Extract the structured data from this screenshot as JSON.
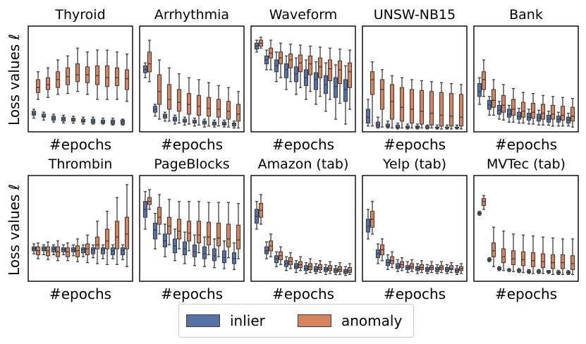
{
  "colors": {
    "inlier": "#5471A8",
    "anomaly": "#D5845E",
    "edge": "#3d3d3d"
  },
  "ylabel": "Loss values ℓ",
  "xlabel": "#epochs",
  "legend": {
    "inlier": "inlier",
    "anomaly": "anomaly"
  },
  "chart_data": [
    {
      "type": "box",
      "title": "Thyroid",
      "ylim": [
        0,
        100
      ],
      "epochs": 10,
      "inlier": [
        [
          11,
          14,
          16,
          18,
          20
        ],
        [
          9,
          12,
          13,
          15,
          17
        ],
        [
          7,
          9,
          11,
          13,
          15
        ],
        [
          6,
          8,
          10,
          12,
          14
        ],
        [
          6,
          8,
          9,
          11,
          13
        ],
        [
          5,
          7,
          8,
          10,
          12
        ],
        [
          5,
          6,
          8,
          10,
          12
        ],
        [
          5,
          6,
          7,
          9,
          11
        ],
        [
          4,
          5,
          7,
          9,
          11
        ],
        [
          4,
          5,
          7,
          9,
          10
        ]
      ],
      "anomaly": [
        [
          30,
          37,
          42,
          50,
          58
        ],
        [
          32,
          40,
          45,
          52,
          62
        ],
        [
          35,
          42,
          50,
          58,
          70
        ],
        [
          36,
          45,
          53,
          62,
          74
        ],
        [
          38,
          48,
          55,
          66,
          82
        ],
        [
          35,
          47,
          55,
          63,
          78
        ],
        [
          30,
          45,
          54,
          64,
          80
        ],
        [
          30,
          43,
          52,
          64,
          80
        ],
        [
          30,
          44,
          52,
          62,
          78
        ],
        [
          28,
          40,
          51,
          60,
          76
        ]
      ]
    },
    {
      "type": "box",
      "title": "Arrhythmia",
      "ylim": [
        0,
        100
      ],
      "epochs": 10,
      "inlier": [
        [
          52,
          57,
          60,
          64,
          67
        ],
        [
          13,
          17,
          20,
          23,
          25
        ],
        [
          8,
          11,
          13,
          15,
          17
        ],
        [
          5,
          8,
          10,
          12,
          14
        ],
        [
          4,
          7,
          8,
          10,
          12
        ],
        [
          3,
          6,
          7,
          9,
          11
        ],
        [
          2,
          5,
          7,
          8,
          10
        ],
        [
          2,
          4,
          6,
          7,
          9
        ],
        [
          2,
          4,
          5,
          7,
          9
        ],
        [
          1,
          3,
          5,
          6,
          8
        ]
      ],
      "anomaly": [
        [
          48,
          58,
          66,
          78,
          90
        ],
        [
          10,
          25,
          38,
          55,
          70
        ],
        [
          8,
          20,
          30,
          45,
          62
        ],
        [
          6,
          18,
          27,
          40,
          56
        ],
        [
          5,
          15,
          25,
          36,
          52
        ],
        [
          4,
          14,
          23,
          34,
          50
        ],
        [
          3,
          13,
          21,
          32,
          47
        ],
        [
          3,
          12,
          20,
          30,
          44
        ],
        [
          2,
          10,
          18,
          28,
          42
        ],
        [
          1,
          8,
          15,
          25,
          38
        ]
      ]
    },
    {
      "type": "box",
      "title": "Waveform",
      "ylim": [
        0,
        100
      ],
      "epochs": 10,
      "inlier": [
        [
          78,
          81,
          84,
          87,
          90
        ],
        [
          60,
          66,
          70,
          74,
          80
        ],
        [
          48,
          58,
          64,
          70,
          78
        ],
        [
          40,
          52,
          60,
          66,
          74
        ],
        [
          35,
          48,
          56,
          63,
          72
        ],
        [
          30,
          44,
          52,
          60,
          70
        ],
        [
          25,
          40,
          50,
          57,
          68
        ],
        [
          18,
          36,
          45,
          54,
          67
        ],
        [
          10,
          32,
          43,
          52,
          65
        ],
        [
          5,
          28,
          40,
          50,
          64
        ]
      ],
      "anomaly": [
        [
          82,
          84,
          87,
          90,
          93
        ],
        [
          60,
          72,
          77,
          82,
          90
        ],
        [
          52,
          66,
          72,
          78,
          87
        ],
        [
          48,
          62,
          70,
          76,
          86
        ],
        [
          42,
          58,
          67,
          75,
          85
        ],
        [
          38,
          55,
          66,
          74,
          84
        ],
        [
          33,
          52,
          63,
          72,
          83
        ],
        [
          30,
          49,
          61,
          70,
          82
        ],
        [
          26,
          46,
          60,
          69,
          81
        ],
        [
          20,
          42,
          58,
          67,
          80
        ]
      ]
    },
    {
      "type": "box",
      "title": "UNSW-NB15",
      "ylim": [
        0,
        100
      ],
      "epochs": 10,
      "inlier": [
        [
          3,
          6,
          12,
          20,
          30
        ],
        [
          1,
          2,
          4,
          7,
          12
        ],
        [
          1,
          2,
          3,
          5,
          8
        ],
        [
          0,
          1,
          2,
          4,
          6
        ],
        [
          0,
          1,
          2,
          3,
          5
        ],
        [
          0,
          1,
          2,
          3,
          5
        ],
        [
          0,
          1,
          1,
          3,
          4
        ],
        [
          0,
          1,
          1,
          2,
          4
        ],
        [
          0,
          1,
          1,
          2,
          4
        ],
        [
          0,
          1,
          1,
          2,
          4
        ]
      ],
      "anomaly": [
        [
          3,
          35,
          50,
          58,
          68
        ],
        [
          2,
          20,
          40,
          50,
          60
        ],
        [
          1,
          10,
          28,
          45,
          54
        ],
        [
          1,
          8,
          22,
          42,
          52
        ],
        [
          1,
          6,
          20,
          40,
          50
        ],
        [
          1,
          5,
          18,
          39,
          49
        ],
        [
          1,
          4,
          16,
          38,
          48
        ],
        [
          0,
          3,
          14,
          37,
          47
        ],
        [
          0,
          3,
          13,
          36,
          46
        ],
        [
          0,
          3,
          12,
          35,
          45
        ]
      ]
    },
    {
      "type": "box",
      "title": "Bank",
      "ylim": [
        0,
        100
      ],
      "epochs": 10,
      "inlier": [
        [
          25,
          33,
          38,
          46,
          52
        ],
        [
          14,
          20,
          24,
          29,
          33
        ],
        [
          10,
          15,
          19,
          24,
          28
        ],
        [
          7,
          12,
          15,
          20,
          24
        ],
        [
          6,
          10,
          13,
          17,
          21
        ],
        [
          5,
          9,
          12,
          16,
          20
        ],
        [
          4,
          8,
          11,
          15,
          19
        ],
        [
          4,
          7,
          10,
          14,
          18
        ],
        [
          3,
          7,
          10,
          13,
          17
        ],
        [
          3,
          6,
          9,
          12,
          16
        ]
      ],
      "anomaly": [
        [
          33,
          40,
          50,
          58,
          70
        ],
        [
          14,
          22,
          29,
          40,
          50
        ],
        [
          9,
          17,
          24,
          34,
          45
        ],
        [
          7,
          14,
          20,
          30,
          41
        ],
        [
          6,
          12,
          18,
          27,
          37
        ],
        [
          5,
          11,
          17,
          26,
          36
        ],
        [
          4,
          10,
          16,
          25,
          34
        ],
        [
          3,
          10,
          15,
          24,
          33
        ],
        [
          3,
          9,
          14,
          23,
          32
        ],
        [
          2,
          8,
          13,
          22,
          31
        ]
      ]
    },
    {
      "type": "box",
      "title": "Thrombin",
      "ylim": [
        0,
        100
      ],
      "epochs": 10,
      "inlier": [
        [
          25,
          28,
          30,
          32,
          35
        ],
        [
          24,
          28,
          30,
          32,
          34
        ],
        [
          24,
          27,
          30,
          32,
          34
        ],
        [
          24,
          27,
          29,
          31,
          34
        ],
        [
          23,
          27,
          29,
          31,
          34
        ],
        [
          22,
          26,
          29,
          31,
          34
        ],
        [
          21,
          25,
          29,
          31,
          34
        ],
        [
          20,
          25,
          29,
          31,
          34
        ],
        [
          20,
          24,
          28,
          31,
          34
        ],
        [
          19,
          24,
          28,
          31,
          34
        ]
      ],
      "anomaly": [
        [
          20,
          24,
          28,
          32,
          36
        ],
        [
          19,
          23,
          28,
          32,
          37
        ],
        [
          18,
          22,
          27,
          32,
          38
        ],
        [
          18,
          22,
          27,
          31,
          36
        ],
        [
          17,
          22,
          28,
          33,
          40
        ],
        [
          16,
          24,
          30,
          35,
          44
        ],
        [
          15,
          30,
          34,
          42,
          58
        ],
        [
          14,
          30,
          38,
          50,
          68
        ],
        [
          14,
          30,
          42,
          58,
          82
        ],
        [
          12,
          30,
          45,
          62,
          95
        ]
      ]
    },
    {
      "type": "box",
      "title": "PageBlocks",
      "ylim": [
        0,
        100
      ],
      "epochs": 10,
      "inlier": [
        [
          50,
          62,
          70,
          78,
          88
        ],
        [
          30,
          40,
          49,
          56,
          66
        ],
        [
          22,
          32,
          38,
          45,
          55
        ],
        [
          18,
          26,
          33,
          40,
          50
        ],
        [
          15,
          24,
          30,
          37,
          47
        ],
        [
          13,
          22,
          27,
          34,
          44
        ],
        [
          12,
          20,
          25,
          32,
          42
        ],
        [
          11,
          18,
          23,
          30,
          40
        ],
        [
          10,
          16,
          21,
          28,
          38
        ],
        [
          9,
          15,
          20,
          26,
          36
        ]
      ],
      "anomaly": [
        [
          70,
          75,
          78,
          82,
          90
        ],
        [
          45,
          55,
          62,
          72,
          85
        ],
        [
          34,
          45,
          53,
          62,
          80
        ],
        [
          30,
          40,
          48,
          60,
          78
        ],
        [
          28,
          38,
          46,
          58,
          78
        ],
        [
          26,
          36,
          44,
          58,
          78
        ],
        [
          24,
          34,
          42,
          57,
          77
        ],
        [
          22,
          33,
          41,
          56,
          77
        ],
        [
          21,
          32,
          40,
          55,
          77
        ],
        [
          20,
          30,
          39,
          54,
          76
        ]
      ]
    },
    {
      "type": "box",
      "title": "Amazon (tab)",
      "ylim": [
        0,
        100
      ],
      "epochs": 10,
      "inlier": [
        [
          50,
          56,
          63,
          70,
          78
        ],
        [
          20,
          25,
          28,
          32,
          37
        ],
        [
          12,
          16,
          20,
          23,
          27
        ],
        [
          8,
          12,
          15,
          18,
          22
        ],
        [
          6,
          10,
          12,
          15,
          18
        ],
        [
          5,
          8,
          10,
          13,
          16
        ],
        [
          5,
          7,
          9,
          12,
          15
        ],
        [
          4,
          7,
          9,
          11,
          14
        ],
        [
          4,
          6,
          8,
          10,
          13
        ],
        [
          3,
          5,
          7,
          9,
          12
        ]
      ],
      "anomaly": [
        [
          55,
          62,
          69,
          76,
          85
        ],
        [
          22,
          28,
          33,
          38,
          45
        ],
        [
          14,
          19,
          23,
          27,
          32
        ],
        [
          10,
          14,
          17,
          21,
          26
        ],
        [
          8,
          11,
          14,
          17,
          22
        ],
        [
          6,
          9,
          12,
          15,
          20
        ],
        [
          6,
          9,
          11,
          14,
          18
        ],
        [
          5,
          8,
          10,
          13,
          17
        ],
        [
          4,
          7,
          9,
          12,
          16
        ],
        [
          4,
          6,
          8,
          11,
          15
        ]
      ]
    },
    {
      "type": "box",
      "title": "Yelp (tab)",
      "ylim": [
        0,
        100
      ],
      "epochs": 10,
      "inlier": [
        [
          40,
          47,
          53,
          60,
          70
        ],
        [
          15,
          21,
          25,
          29,
          35
        ],
        [
          9,
          13,
          16,
          19,
          24
        ],
        [
          7,
          10,
          12,
          15,
          19
        ],
        [
          6,
          9,
          11,
          13,
          17
        ],
        [
          5,
          8,
          10,
          12,
          15
        ],
        [
          5,
          7,
          9,
          11,
          14
        ],
        [
          5,
          7,
          9,
          11,
          14
        ],
        [
          5,
          7,
          9,
          11,
          14
        ],
        [
          4,
          6,
          8,
          10,
          13
        ]
      ],
      "anomaly": [
        [
          45,
          52,
          60,
          68,
          78
        ],
        [
          18,
          24,
          29,
          34,
          40
        ],
        [
          11,
          15,
          18,
          22,
          27
        ],
        [
          8,
          11,
          14,
          17,
          21
        ],
        [
          7,
          10,
          12,
          15,
          19
        ],
        [
          6,
          9,
          11,
          14,
          18
        ],
        [
          6,
          9,
          11,
          13,
          17
        ],
        [
          6,
          9,
          11,
          13,
          17
        ],
        [
          6,
          9,
          10,
          13,
          16
        ],
        [
          5,
          8,
          10,
          12,
          15
        ]
      ]
    },
    {
      "type": "box",
      "title": "MVTec (tab)",
      "ylim": [
        0,
        100
      ],
      "epochs": 10,
      "inlier": [
        [
          64,
          65,
          66,
          67,
          68
        ],
        [
          17,
          18,
          19,
          20,
          21
        ],
        [
          8,
          9,
          10,
          11,
          12
        ],
        [
          7,
          8,
          9,
          9,
          10
        ],
        [
          6,
          7,
          8,
          9,
          10
        ],
        [
          5,
          6,
          7,
          8,
          9
        ],
        [
          5,
          6,
          7,
          8,
          9
        ],
        [
          5,
          6,
          7,
          8,
          8
        ],
        [
          4,
          5,
          6,
          7,
          8
        ],
        [
          4,
          5,
          6,
          7,
          8
        ]
      ],
      "anomaly": [
        [
          70,
          74,
          78,
          81,
          84
        ],
        [
          12,
          22,
          28,
          36,
          52
        ],
        [
          8,
          16,
          22,
          30,
          48
        ],
        [
          7,
          14,
          20,
          28,
          45
        ],
        [
          6,
          13,
          19,
          27,
          44
        ],
        [
          5,
          12,
          18,
          26,
          43
        ],
        [
          5,
          11,
          17,
          25,
          42
        ],
        [
          4,
          10,
          16,
          24,
          41
        ],
        [
          4,
          10,
          16,
          24,
          40
        ],
        [
          4,
          9,
          15,
          23,
          40
        ]
      ]
    }
  ]
}
